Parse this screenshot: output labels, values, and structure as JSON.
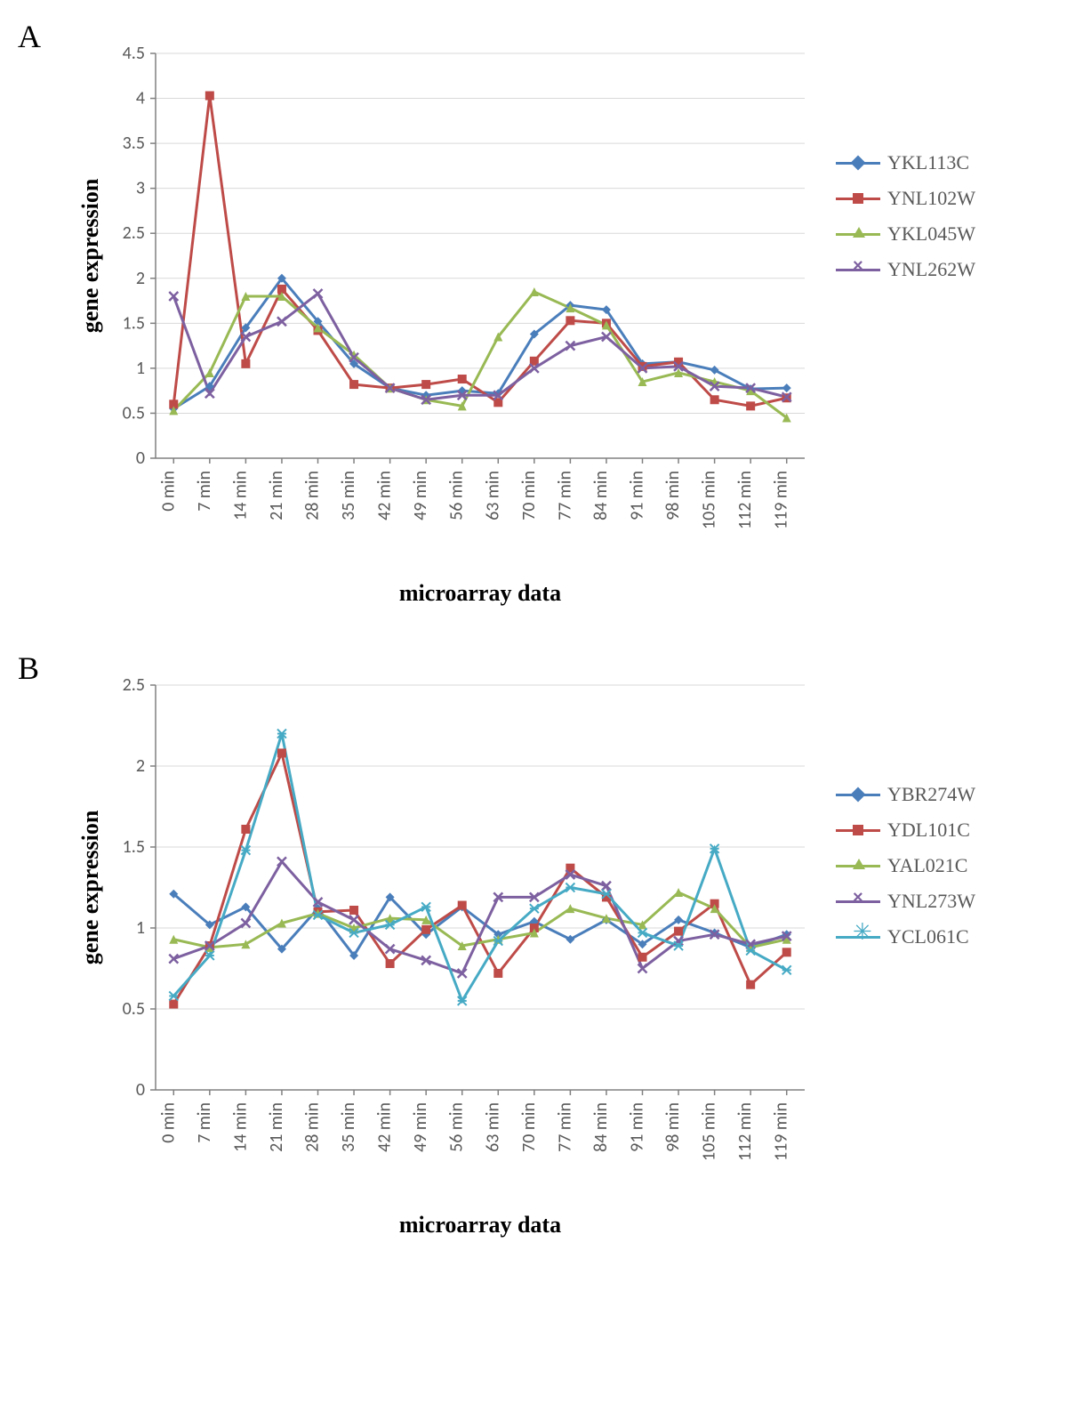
{
  "figure": {
    "background_color": "#ffffff",
    "panels": [
      {
        "label": "A",
        "xlabel": "microarray data",
        "ylabel": "gene expression",
        "label_fontsize": 26,
        "tick_fontsize": 20,
        "tick_color": "#595959",
        "grid_color": "#d9d9d9",
        "axis_color": "#808080",
        "ylim": [
          0,
          4.5
        ],
        "ytick_step": 0.5,
        "yticks": [
          0,
          0.5,
          1,
          1.5,
          2,
          2.5,
          3,
          3.5,
          4,
          4.5
        ],
        "categories": [
          "0 min",
          "7 min",
          "14 min",
          "21 min",
          "28 min",
          "35 min",
          "42 min",
          "49 min",
          "56 min",
          "63 min",
          "70 min",
          "77 min",
          "84 min",
          "91 min",
          "98 min",
          "105 min",
          "112 min",
          "119 min"
        ],
        "marker_size": 10,
        "line_width": 3,
        "series": [
          {
            "name": "YKL113C",
            "color": "#4a7ebb",
            "marker": "diamond",
            "values": [
              0.55,
              0.8,
              1.45,
              2.0,
              1.52,
              1.05,
              0.78,
              0.7,
              0.75,
              0.72,
              1.38,
              1.7,
              1.65,
              1.05,
              1.07,
              0.98,
              0.77,
              0.78
            ]
          },
          {
            "name": "YNL102W",
            "color": "#be4b48",
            "marker": "square",
            "values": [
              0.6,
              4.03,
              1.05,
              1.88,
              1.42,
              0.82,
              0.78,
              0.82,
              0.88,
              0.62,
              1.08,
              1.53,
              1.5,
              1.02,
              1.07,
              0.65,
              0.58,
              0.67
            ]
          },
          {
            "name": "YKL045W",
            "color": "#98b954",
            "marker": "triangle",
            "values": [
              0.53,
              0.95,
              1.8,
              1.8,
              1.45,
              1.15,
              0.78,
              0.65,
              0.58,
              1.35,
              1.85,
              1.67,
              1.48,
              0.85,
              0.95,
              0.85,
              0.75,
              0.45
            ]
          },
          {
            "name": "YNL262W",
            "color": "#7d60a0",
            "marker": "x",
            "values": [
              1.8,
              0.72,
              1.35,
              1.52,
              1.83,
              1.12,
              0.78,
              0.65,
              0.7,
              0.7,
              1.0,
              1.25,
              1.35,
              1.0,
              1.02,
              0.8,
              0.78,
              0.68
            ]
          }
        ]
      },
      {
        "label": "B",
        "xlabel": "microarray data",
        "ylabel": "gene expression",
        "label_fontsize": 26,
        "tick_fontsize": 20,
        "tick_color": "#595959",
        "grid_color": "#d9d9d9",
        "axis_color": "#808080",
        "ylim": [
          0,
          2.5
        ],
        "ytick_step": 0.5,
        "yticks": [
          0,
          0.5,
          1,
          1.5,
          2,
          2.5
        ],
        "categories": [
          "0 min",
          "7 min",
          "14 min",
          "21 min",
          "28 min",
          "35 min",
          "42 min",
          "49 min",
          "56 min",
          "63 min",
          "70 min",
          "77 min",
          "84 min",
          "91 min",
          "98 min",
          "105 min",
          "112 min",
          "119 min"
        ],
        "marker_size": 10,
        "line_width": 3,
        "series": [
          {
            "name": "YBR274W",
            "color": "#4a7ebb",
            "marker": "diamond",
            "values": [
              1.21,
              1.02,
              1.13,
              0.87,
              1.12,
              0.83,
              1.19,
              0.96,
              1.13,
              0.96,
              1.04,
              0.93,
              1.05,
              0.9,
              1.05,
              0.97,
              0.88,
              0.96
            ]
          },
          {
            "name": "YDL101C",
            "color": "#be4b48",
            "marker": "square",
            "values": [
              0.53,
              0.89,
              1.61,
              2.08,
              1.1,
              1.11,
              0.78,
              0.99,
              1.14,
              0.72,
              1.0,
              1.37,
              1.19,
              0.82,
              0.98,
              1.15,
              0.65,
              0.85
            ]
          },
          {
            "name": "YAL021C",
            "color": "#98b954",
            "marker": "triangle",
            "values": [
              0.93,
              0.88,
              0.9,
              1.03,
              1.09,
              1.0,
              1.06,
              1.05,
              0.89,
              0.93,
              0.97,
              1.12,
              1.06,
              1.02,
              1.22,
              1.12,
              0.88,
              0.93
            ]
          },
          {
            "name": "YNL273W",
            "color": "#7d60a0",
            "marker": "x",
            "values": [
              0.81,
              0.89,
              1.03,
              1.41,
              1.16,
              1.05,
              0.87,
              0.8,
              0.72,
              1.19,
              1.19,
              1.33,
              1.26,
              0.75,
              0.92,
              0.96,
              0.9,
              0.95
            ]
          },
          {
            "name": "YCL061C",
            "color": "#46aac5",
            "marker": "asterisk",
            "values": [
              0.58,
              0.83,
              1.48,
              2.2,
              1.08,
              0.97,
              1.02,
              1.13,
              0.55,
              0.92,
              1.12,
              1.25,
              1.21,
              0.97,
              0.89,
              1.49,
              0.86,
              0.74
            ]
          }
        ]
      }
    ]
  }
}
